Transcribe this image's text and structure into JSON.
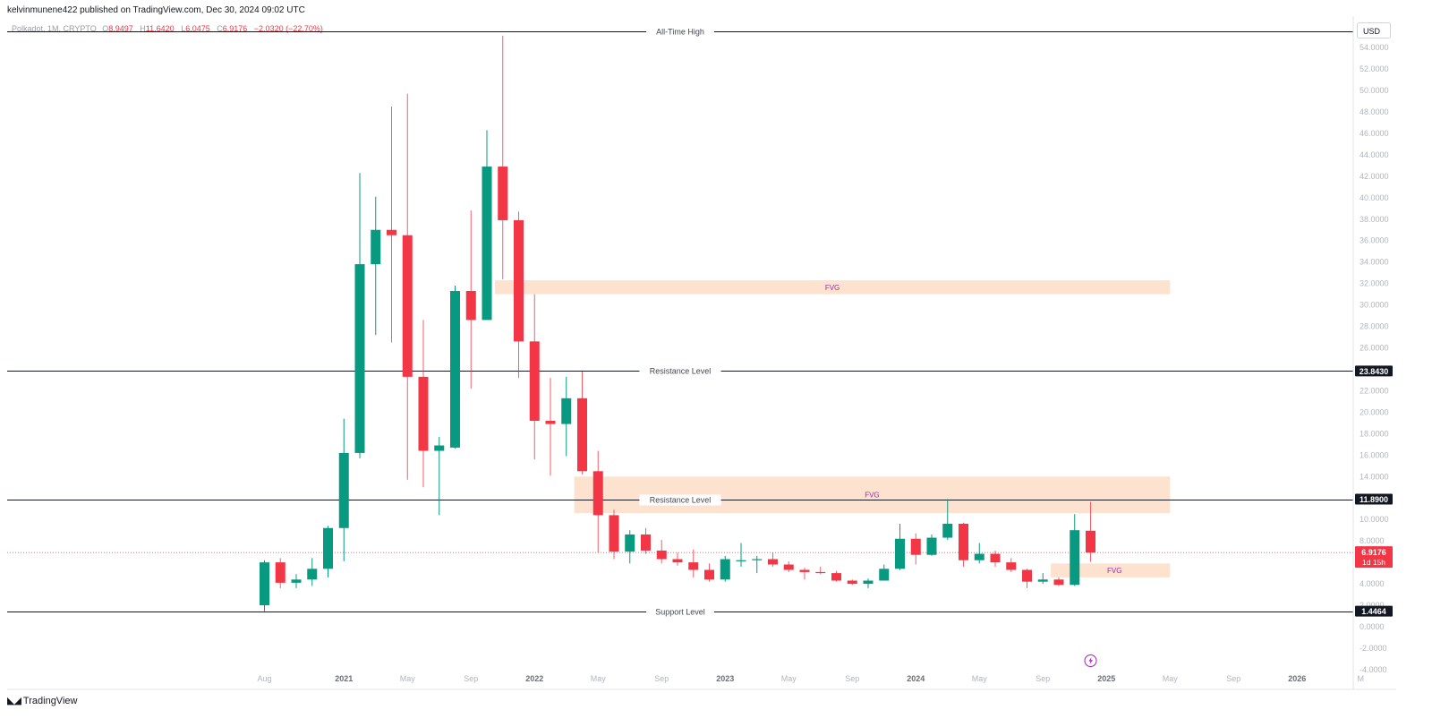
{
  "header": {
    "published_by": "kelvinmunene422 published on TradingView.com, Dec 30, 2024 09:02 UTC"
  },
  "symbol": {
    "label": "Polkadot, 1M, CRYPTO",
    "o_label": "O",
    "o_value": "8.9497",
    "h_label": "H",
    "h_value": "11.6420",
    "l_label": "L",
    "l_value": "6.0475",
    "c_label": "C",
    "c_value": "6.9176",
    "change": "−2.0320 (−22.70%)"
  },
  "currency_button": "USD",
  "footer": {
    "brand": "TradingView"
  },
  "colors": {
    "up": "#089981",
    "down": "#f23645",
    "fvg_fill": "#fde3cf",
    "fvg_text": "#9c27b0",
    "level_line": "#131722",
    "grid_text": "#b2b5be"
  },
  "chart_data": {
    "type": "candlestick",
    "y_axis": {
      "min": -4,
      "max": 55,
      "ticks": [
        "54.0000",
        "52.0000",
        "50.0000",
        "48.0000",
        "46.0000",
        "44.0000",
        "42.0000",
        "40.0000",
        "38.0000",
        "36.0000",
        "34.0000",
        "32.0000",
        "30.0000",
        "28.0000",
        "26.0000",
        "24.0000",
        "22.0000",
        "20.0000",
        "18.0000",
        "16.0000",
        "14.0000",
        "12.0000",
        "10.0000",
        "8.0000",
        "6.0000",
        "4.0000",
        "2.0000",
        "0.0000",
        "-2.0000",
        "-4.0000"
      ],
      "tick_values": [
        54,
        52,
        50,
        48,
        46,
        44,
        42,
        40,
        38,
        36,
        34,
        32,
        30,
        28,
        26,
        24,
        22,
        20,
        18,
        16,
        14,
        12,
        10,
        8,
        6,
        4,
        2,
        0,
        -2,
        -4
      ]
    },
    "x_axis": {
      "labels": [
        "Aug",
        "2021",
        "May",
        "Sep",
        "2022",
        "May",
        "Sep",
        "2023",
        "May",
        "Sep",
        "2024",
        "May",
        "Sep",
        "2025",
        "May",
        "Sep",
        "2026",
        "M"
      ],
      "label_months": [
        "2020-08",
        "2021-01",
        "2021-05",
        "2021-09",
        "2022-01",
        "2022-05",
        "2022-09",
        "2023-01",
        "2023-05",
        "2023-09",
        "2024-01",
        "2024-05",
        "2024-09",
        "2025-01",
        "2025-05",
        "2025-09",
        "2026-01",
        "2026-05"
      ],
      "bold_labels": [
        "2021",
        "2022",
        "2023",
        "2024",
        "2025",
        "2026"
      ]
    },
    "candles": [
      {
        "t": "2020-08",
        "o": 2.0,
        "h": 6.2,
        "l": 1.45,
        "c": 6.0
      },
      {
        "t": "2020-09",
        "o": 6.0,
        "h": 6.4,
        "l": 3.6,
        "c": 4.1
      },
      {
        "t": "2020-10",
        "o": 4.1,
        "h": 4.9,
        "l": 3.6,
        "c": 4.4
      },
      {
        "t": "2020-11",
        "o": 4.4,
        "h": 6.4,
        "l": 3.8,
        "c": 5.4
      },
      {
        "t": "2020-12",
        "o": 5.4,
        "h": 9.4,
        "l": 4.6,
        "c": 9.2
      },
      {
        "t": "2021-01",
        "o": 9.2,
        "h": 19.4,
        "l": 6.1,
        "c": 16.2
      },
      {
        "t": "2021-02",
        "o": 16.2,
        "h": 42.3,
        "l": 15.7,
        "c": 33.8
      },
      {
        "t": "2021-03",
        "o": 33.8,
        "h": 40.1,
        "l": 27.2,
        "c": 37.0
      },
      {
        "t": "2021-04",
        "o": 37.0,
        "h": 48.5,
        "l": 26.5,
        "c": 36.5
      },
      {
        "t": "2021-05",
        "o": 36.5,
        "h": 49.7,
        "l": 13.7,
        "c": 23.3
      },
      {
        "t": "2021-06",
        "o": 23.3,
        "h": 28.6,
        "l": 13.0,
        "c": 16.4
      },
      {
        "t": "2021-07",
        "o": 16.4,
        "h": 17.7,
        "l": 10.4,
        "c": 16.9
      },
      {
        "t": "2021-08",
        "o": 16.7,
        "h": 31.8,
        "l": 16.6,
        "c": 31.3
      },
      {
        "t": "2021-09",
        "o": 31.3,
        "h": 38.8,
        "l": 22.2,
        "c": 28.6
      },
      {
        "t": "2021-10",
        "o": 28.6,
        "h": 46.3,
        "l": 28.6,
        "c": 42.9
      },
      {
        "t": "2021-11",
        "o": 42.9,
        "h": 55.1,
        "l": 32.4,
        "c": 37.9
      },
      {
        "t": "2021-12",
        "o": 37.9,
        "h": 38.7,
        "l": 23.2,
        "c": 26.6
      },
      {
        "t": "2022-01",
        "o": 26.6,
        "h": 31.0,
        "l": 15.6,
        "c": 19.2
      },
      {
        "t": "2022-02",
        "o": 19.2,
        "h": 23.2,
        "l": 14.1,
        "c": 18.9
      },
      {
        "t": "2022-03",
        "o": 18.9,
        "h": 23.3,
        "l": 15.9,
        "c": 21.3
      },
      {
        "t": "2022-04",
        "o": 21.3,
        "h": 23.8,
        "l": 14.2,
        "c": 14.5
      },
      {
        "t": "2022-05",
        "o": 14.5,
        "h": 16.4,
        "l": 6.9,
        "c": 10.4
      },
      {
        "t": "2022-06",
        "o": 10.4,
        "h": 10.9,
        "l": 6.3,
        "c": 7.0
      },
      {
        "t": "2022-07",
        "o": 7.0,
        "h": 9.0,
        "l": 5.9,
        "c": 8.6
      },
      {
        "t": "2022-08",
        "o": 8.6,
        "h": 9.2,
        "l": 6.8,
        "c": 7.1
      },
      {
        "t": "2022-09",
        "o": 7.1,
        "h": 8.1,
        "l": 5.9,
        "c": 6.3
      },
      {
        "t": "2022-10",
        "o": 6.3,
        "h": 6.9,
        "l": 5.7,
        "c": 6.0
      },
      {
        "t": "2022-11",
        "o": 6.0,
        "h": 7.2,
        "l": 4.6,
        "c": 5.3
      },
      {
        "t": "2022-12",
        "o": 5.3,
        "h": 5.9,
        "l": 4.2,
        "c": 4.4
      },
      {
        "t": "2023-01",
        "o": 4.4,
        "h": 6.6,
        "l": 4.2,
        "c": 6.3
      },
      {
        "t": "2023-02",
        "o": 6.1,
        "h": 7.8,
        "l": 5.6,
        "c": 6.2
      },
      {
        "t": "2023-03",
        "o": 6.2,
        "h": 6.6,
        "l": 5.0,
        "c": 6.3
      },
      {
        "t": "2023-04",
        "o": 6.3,
        "h": 6.9,
        "l": 5.6,
        "c": 5.8
      },
      {
        "t": "2023-05",
        "o": 5.8,
        "h": 6.1,
        "l": 5.1,
        "c": 5.3
      },
      {
        "t": "2023-06",
        "o": 5.3,
        "h": 5.5,
        "l": 4.4,
        "c": 5.1
      },
      {
        "t": "2023-07",
        "o": 5.1,
        "h": 5.6,
        "l": 4.9,
        "c": 5.0
      },
      {
        "t": "2023-08",
        "o": 5.0,
        "h": 5.2,
        "l": 4.2,
        "c": 4.3
      },
      {
        "t": "2023-09",
        "o": 4.3,
        "h": 4.4,
        "l": 3.9,
        "c": 4.0
      },
      {
        "t": "2023-10",
        "o": 4.0,
        "h": 4.5,
        "l": 3.6,
        "c": 4.3
      },
      {
        "t": "2023-11",
        "o": 4.3,
        "h": 5.8,
        "l": 4.3,
        "c": 5.4
      },
      {
        "t": "2023-12",
        "o": 5.4,
        "h": 9.6,
        "l": 5.3,
        "c": 8.2
      },
      {
        "t": "2024-01",
        "o": 8.2,
        "h": 8.7,
        "l": 5.8,
        "c": 6.7
      },
      {
        "t": "2024-02",
        "o": 6.7,
        "h": 8.6,
        "l": 6.6,
        "c": 8.3
      },
      {
        "t": "2024-03",
        "o": 8.3,
        "h": 11.9,
        "l": 8.1,
        "c": 9.6
      },
      {
        "t": "2024-04",
        "o": 9.6,
        "h": 9.7,
        "l": 5.6,
        "c": 6.2
      },
      {
        "t": "2024-05",
        "o": 6.2,
        "h": 7.8,
        "l": 5.9,
        "c": 6.8
      },
      {
        "t": "2024-06",
        "o": 6.8,
        "h": 7.1,
        "l": 5.6,
        "c": 6.0
      },
      {
        "t": "2024-07",
        "o": 6.0,
        "h": 6.4,
        "l": 5.1,
        "c": 5.3
      },
      {
        "t": "2024-08",
        "o": 5.3,
        "h": 5.4,
        "l": 3.6,
        "c": 4.2
      },
      {
        "t": "2024-09",
        "o": 4.2,
        "h": 5.0,
        "l": 4.0,
        "c": 4.4
      },
      {
        "t": "2024-10",
        "o": 4.4,
        "h": 4.6,
        "l": 3.8,
        "c": 3.9
      },
      {
        "t": "2024-11",
        "o": 3.9,
        "h": 10.5,
        "l": 3.8,
        "c": 9.0
      },
      {
        "t": "2024-12",
        "o": 8.95,
        "h": 11.64,
        "l": 6.05,
        "c": 6.92
      }
    ],
    "levels": [
      {
        "label": "All-Time High",
        "value": 55.0
      },
      {
        "label": "Resistance Level",
        "value": 23.843,
        "tag": "23.8430"
      },
      {
        "label": "Resistance Level",
        "value": 11.89,
        "tag": "11.8900"
      },
      {
        "label": "Support Level",
        "value": 1.4464,
        "tag": "1.4464"
      }
    ],
    "fvg_zones": [
      {
        "label": "FVG",
        "y_low": 31.0,
        "y_high": 32.3,
        "x_start": "2021-11",
        "x_end": "2025-05"
      },
      {
        "label": "FVG",
        "y_low": 10.6,
        "y_high": 14.0,
        "x_start": "2022-04",
        "x_end": "2025-05"
      },
      {
        "label": "FVG",
        "y_low": 4.6,
        "y_high": 5.9,
        "x_start": "2024-10",
        "x_end": "2025-05"
      }
    ],
    "current_price": {
      "value": 6.9176,
      "label": "6.9176",
      "countdown": "1d 15h"
    }
  }
}
